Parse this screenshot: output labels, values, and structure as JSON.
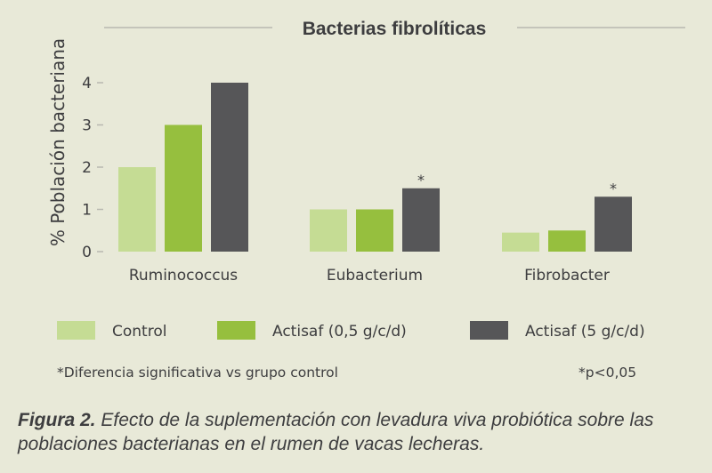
{
  "colors": {
    "background": "#e8e9d8",
    "text": "#3d3d3f",
    "rule": "#b8b8b0",
    "series": [
      "#c5dc94",
      "#96bf3e",
      "#565658"
    ]
  },
  "chart_data": {
    "type": "bar",
    "title": "Bacterias fibrolíticas",
    "ylabel": "% Población bacteriana",
    "xlabel": "",
    "ylim": [
      0,
      4
    ],
    "yticks": [
      "0",
      "1",
      "2",
      "3",
      "4"
    ],
    "grid": false,
    "categories": [
      "Ruminococcus",
      "Eubacterium",
      "Fibrobacter"
    ],
    "series": [
      {
        "name": "Control",
        "values": [
          2.0,
          1.0,
          0.45
        ]
      },
      {
        "name": "Actisaf (0,5 g/c/d)",
        "values": [
          3.0,
          1.0,
          0.5
        ]
      },
      {
        "name": "Actisaf (5 g/c/d)",
        "values": [
          4.0,
          1.5,
          1.3
        ]
      }
    ],
    "annotations": [
      {
        "text": "*",
        "category": "Eubacterium",
        "series": "Actisaf (5 g/c/d)"
      },
      {
        "text": "*",
        "category": "Fibrobacter",
        "series": "Actisaf (5 g/c/d)"
      }
    ],
    "legend_position": "bottom"
  },
  "notes": {
    "significance": "*Diferencia significativa vs grupo control",
    "pvalue": "*p<0,05"
  },
  "caption": {
    "label": "Figura 2.",
    "text": " Efecto de la suplementación con levadura viva probiótica sobre las poblaciones bacterianas en el rumen de vacas lecheras."
  }
}
